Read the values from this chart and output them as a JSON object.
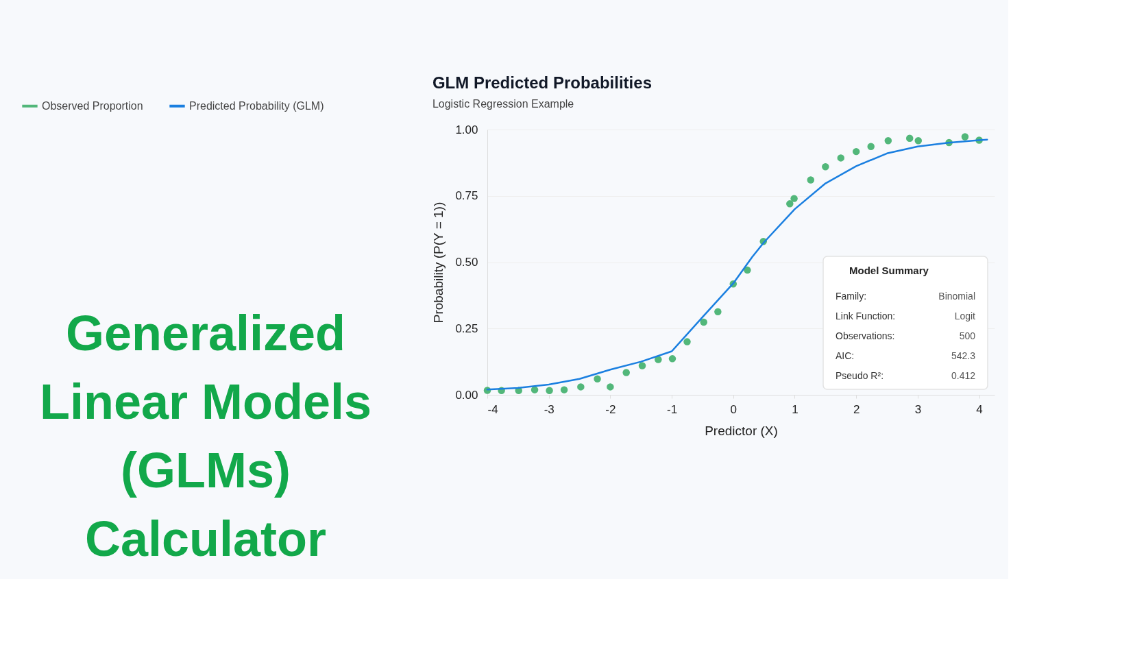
{
  "chart_data": {
    "type": "scatter",
    "title": "GLM Predicted Probabilities",
    "subtitle": "Logistic Regression Example",
    "xlabel": "Predictor (X)",
    "ylabel": "Probability (P(Y = 1))",
    "xlim": [
      -4,
      4.25
    ],
    "xticks": [
      -4,
      -3,
      -2,
      -1,
      0,
      1,
      2,
      3,
      4
    ],
    "ylim": [
      0,
      1
    ],
    "yticks": [
      {
        "value": 0,
        "label": "0.00"
      },
      {
        "value": 0.25,
        "label": "0.25"
      },
      {
        "value": 0.5,
        "label": "0.50"
      },
      {
        "value": 0.75,
        "label": "0.75"
      },
      {
        "value": 1,
        "label": "1.00"
      }
    ],
    "grid": "y",
    "legend": "top",
    "series": [
      {
        "name": "Observed Proportion",
        "marker": "circle",
        "color": "#52b77a",
        "x": [
          -4,
          -3.77,
          -3.49,
          -3.23,
          -2.99,
          -2.75,
          -2.48,
          -2.21,
          -2.0,
          -1.74,
          -1.48,
          -1.22,
          -0.99,
          -0.75,
          -0.48,
          -0.25,
          0.0,
          0.23,
          0.49,
          0.92,
          0.99,
          1.26,
          1.5,
          1.75,
          2.0,
          2.24,
          2.52,
          2.87,
          3.01,
          3.51,
          3.77,
          4.0
        ],
        "values": [
          0.017,
          0.016,
          0.016,
          0.019,
          0.016,
          0.019,
          0.03,
          0.06,
          0.03,
          0.084,
          0.11,
          0.133,
          0.136,
          0.2,
          0.274,
          0.313,
          0.418,
          0.47,
          0.578,
          0.72,
          0.74,
          0.81,
          0.86,
          0.893,
          0.917,
          0.936,
          0.958,
          0.967,
          0.958,
          0.951,
          0.973,
          0.96
        ]
      },
      {
        "name": "Predicted Probability (GLM)",
        "type": "line",
        "marker": "none",
        "line_style": "solid",
        "color": "#1a7fe0",
        "x": [
          -4,
          -3.5,
          -3,
          -2.5,
          -2,
          -1.5,
          -1,
          -0.5,
          0,
          0.31,
          0.5,
          1,
          1.5,
          2,
          2.5,
          3,
          3.5,
          4,
          4.13
        ],
        "values": [
          0.02,
          0.026,
          0.039,
          0.06,
          0.095,
          0.125,
          0.164,
          0.293,
          0.42,
          0.52,
          0.575,
          0.7,
          0.797,
          0.862,
          0.91,
          0.936,
          0.95,
          0.96,
          0.962
        ]
      }
    ],
    "annotations": [
      "Generalized Linear Models (GLMs) Calculator",
      "Model Summary",
      "Family:",
      "Binomial",
      "Link Function:",
      "Logit",
      "Observations:",
      "500",
      "AIC:",
      "542.3",
      "Pseudo R²:",
      "0.412"
    ]
  }
}
